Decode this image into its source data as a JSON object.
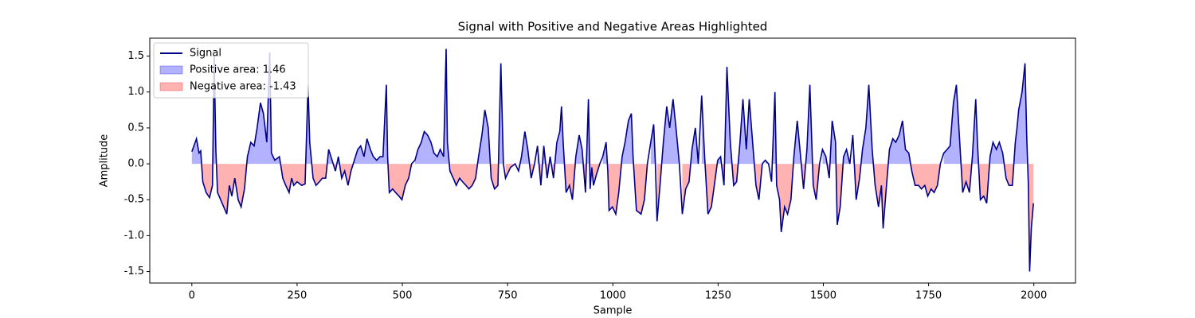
{
  "chart_data": {
    "type": "line",
    "title": "Signal with Positive and Negative Areas Highlighted",
    "x_label": "Sample",
    "y_label": "Amplitude",
    "x": [
      0,
      11,
      17,
      21,
      26,
      34,
      42,
      49,
      53,
      57,
      61,
      72,
      83,
      89,
      95,
      102,
      110,
      117,
      125,
      132,
      140,
      148,
      155,
      163,
      170,
      178,
      185,
      189,
      197,
      208,
      216,
      223,
      231,
      237,
      242,
      250,
      261,
      269,
      276,
      280,
      288,
      295,
      303,
      310,
      318,
      325,
      333,
      341,
      348,
      356,
      363,
      371,
      378,
      386,
      394,
      401,
      409,
      416,
      424,
      431,
      439,
      447,
      454,
      462,
      465,
      469,
      477,
      484,
      492,
      499,
      507,
      515,
      522,
      530,
      537,
      545,
      552,
      560,
      568,
      575,
      583,
      590,
      598,
      604,
      607,
      613,
      621,
      628,
      636,
      643,
      651,
      658,
      666,
      674,
      681,
      689,
      696,
      704,
      711,
      719,
      727,
      734,
      740,
      745,
      757,
      768,
      776,
      783,
      791,
      798,
      806,
      814,
      821,
      829,
      836,
      844,
      851,
      859,
      867,
      874,
      878,
      882,
      889,
      897,
      904,
      912,
      920,
      927,
      935,
      942,
      946,
      950,
      954,
      961,
      969,
      976,
      984,
      988,
      991,
      999,
      1007,
      1014,
      1022,
      1029,
      1037,
      1044,
      1048,
      1056,
      1067,
      1075,
      1082,
      1090,
      1097,
      1101,
      1105,
      1112,
      1120,
      1128,
      1135,
      1143,
      1150,
      1158,
      1165,
      1173,
      1181,
      1188,
      1196,
      1203,
      1211,
      1218,
      1226,
      1234,
      1241,
      1249,
      1256,
      1264,
      1271,
      1279,
      1287,
      1294,
      1302,
      1309,
      1317,
      1324,
      1332,
      1340,
      1347,
      1355,
      1362,
      1370,
      1377,
      1385,
      1389,
      1396,
      1400,
      1408,
      1415,
      1423,
      1430,
      1438,
      1446,
      1453,
      1461,
      1468,
      1476,
      1483,
      1491,
      1498,
      1506,
      1514,
      1521,
      1529,
      1533,
      1540,
      1548,
      1555,
      1563,
      1570,
      1578,
      1586,
      1593,
      1601,
      1608,
      1616,
      1623,
      1631,
      1638,
      1642,
      1650,
      1657,
      1665,
      1672,
      1680,
      1688,
      1695,
      1703,
      1710,
      1718,
      1726,
      1733,
      1741,
      1748,
      1756,
      1763,
      1771,
      1778,
      1786,
      1794,
      1801,
      1809,
      1816,
      1824,
      1831,
      1839,
      1847,
      1854,
      1862,
      1866,
      1873,
      1881,
      1888,
      1896,
      1903,
      1911,
      1918,
      1926,
      1934,
      1941,
      1949,
      1956,
      1960,
      1964,
      1972,
      1979,
      1983,
      1987,
      1990,
      1994,
      1999
    ],
    "series": [
      {
        "name": "Signal",
        "color": "#00008b",
        "values": [
          0.17,
          0.35,
          0.15,
          0.18,
          -0.25,
          -0.4,
          -0.47,
          -0.3,
          1.5,
          0.2,
          -0.4,
          -0.55,
          -0.7,
          -0.3,
          -0.45,
          -0.2,
          -0.5,
          -0.6,
          -0.35,
          0.1,
          0.3,
          0.25,
          0.5,
          0.85,
          0.7,
          0.3,
          1.55,
          0.15,
          0.05,
          0.1,
          -0.2,
          -0.3,
          -0.4,
          -0.2,
          -0.3,
          -0.25,
          -0.3,
          -0.28,
          1.1,
          0.3,
          -0.2,
          -0.3,
          -0.25,
          -0.2,
          -0.2,
          0.2,
          0.05,
          -0.1,
          0.1,
          -0.2,
          -0.1,
          -0.3,
          -0.1,
          0.05,
          0.2,
          0.25,
          0.1,
          0.35,
          0.2,
          0.1,
          0.05,
          0.1,
          0.1,
          1.1,
          0.1,
          -0.4,
          -0.35,
          -0.4,
          -0.45,
          -0.5,
          -0.3,
          -0.2,
          0.0,
          0.05,
          0.2,
          0.3,
          0.45,
          0.4,
          0.3,
          0.15,
          0.1,
          0.2,
          0.1,
          1.6,
          0.3,
          -0.1,
          -0.2,
          -0.3,
          -0.2,
          -0.25,
          -0.3,
          -0.35,
          -0.3,
          -0.2,
          0.1,
          0.4,
          0.75,
          0.5,
          -0.2,
          -0.35,
          -0.3,
          1.4,
          0.0,
          -0.2,
          -0.05,
          0.0,
          -0.1,
          0.1,
          0.45,
          0.2,
          -0.2,
          0.0,
          0.25,
          -0.3,
          0.25,
          -0.2,
          0.1,
          -0.2,
          0.3,
          0.45,
          0.8,
          0.3,
          -0.4,
          -0.3,
          -0.5,
          0.1,
          0.4,
          0.2,
          -0.4,
          0.9,
          -0.35,
          -0.05,
          -0.3,
          -0.15,
          0.0,
          0.1,
          0.3,
          -0.1,
          -0.65,
          -0.6,
          -0.7,
          -0.4,
          0.1,
          0.3,
          0.6,
          0.7,
          0.1,
          -0.65,
          -0.7,
          -0.5,
          0.0,
          0.3,
          0.55,
          0.0,
          -0.8,
          -0.3,
          0.3,
          0.8,
          0.5,
          0.9,
          0.5,
          0.0,
          -0.7,
          -0.35,
          -0.25,
          0.2,
          0.5,
          0.0,
          0.95,
          0.1,
          -0.7,
          -0.6,
          -0.3,
          0.05,
          0.1,
          -0.3,
          1.35,
          0.3,
          -0.3,
          -0.25,
          0.3,
          0.9,
          0.2,
          0.9,
          0.3,
          -0.3,
          -0.5,
          0.0,
          0.05,
          0.0,
          -0.25,
          1.0,
          -0.3,
          -0.5,
          -0.95,
          -0.6,
          -0.7,
          -0.5,
          0.1,
          0.6,
          0.1,
          -0.35,
          0.2,
          1.1,
          -0.3,
          -0.5,
          0.0,
          0.2,
          0.1,
          -0.2,
          0.6,
          0.3,
          -0.85,
          -0.6,
          0.1,
          0.2,
          0.0,
          0.4,
          -0.5,
          -0.2,
          0.2,
          0.5,
          1.1,
          0.2,
          -0.3,
          -0.6,
          -0.3,
          -0.9,
          -0.3,
          0.2,
          0.35,
          0.3,
          0.4,
          0.6,
          0.2,
          0.15,
          -0.1,
          -0.3,
          -0.3,
          -0.35,
          -0.3,
          -0.45,
          -0.35,
          -0.4,
          -0.3,
          0.0,
          0.15,
          0.2,
          0.25,
          0.85,
          1.1,
          0.3,
          -0.4,
          -0.25,
          -0.4,
          0.1,
          0.9,
          0.3,
          -0.5,
          -0.45,
          -0.55,
          0.1,
          0.3,
          0.2,
          0.3,
          0.15,
          -0.2,
          -0.3,
          -0.3,
          0.3,
          0.5,
          0.75,
          1.0,
          1.4,
          0.4,
          -0.3,
          -1.5,
          -0.9,
          -0.55
        ]
      }
    ],
    "fills": [
      {
        "name": "Positive area: 1.46",
        "color": "blue",
        "alpha": 0.3,
        "where": "positive"
      },
      {
        "name": "Negative area: -1.43",
        "color": "red",
        "alpha": 0.3,
        "where": "negative"
      }
    ],
    "xlim": [
      -99.95,
      2098.95
    ],
    "ylim": [
      -1.66,
      1.75
    ],
    "xticks": [
      0,
      250,
      500,
      750,
      1000,
      1250,
      1500,
      1750,
      2000
    ],
    "yticks": [
      -1.5,
      {
        "value": -1.0,
        "label": "-1.0"
      },
      -0.5,
      {
        "value": 0.0,
        "label": "0.0"
      },
      0.5,
      {
        "value": 1.0,
        "label": "1.0"
      },
      1.5
    ],
    "legend": "upper left",
    "grid": false
  }
}
